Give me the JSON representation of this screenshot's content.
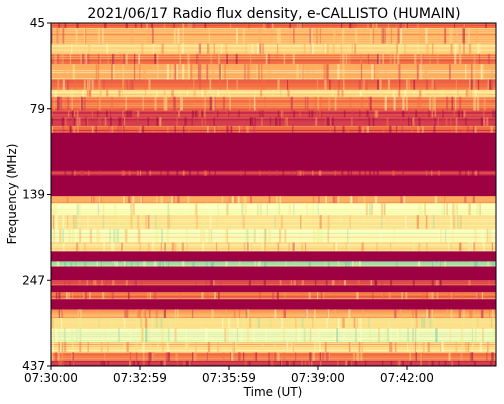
{
  "chart_data": {
    "type": "heatmap",
    "title": "2021/06/17  Radio flux density, e-CALLISTO (HUMAIN)",
    "xlabel": "Time (UT)",
    "ylabel": "Frequency (MHz)",
    "x_ticks": [
      "07:30:00",
      "07:32:59",
      "07:35:59",
      "07:39:00",
      "07:42:00"
    ],
    "y_ticks": [
      "45",
      "79",
      "139",
      "247",
      "437"
    ],
    "colormap": [
      "#9e0142",
      "#d53e4f",
      "#f46d43",
      "#fdae61",
      "#fee08b",
      "#ffffbf",
      "#e6f598",
      "#abdda4",
      "#66c2a5"
    ],
    "bands": [
      {
        "from": 0.0,
        "to": 0.015,
        "level": 0.2
      },
      {
        "from": 0.015,
        "to": 0.06,
        "level": 0.35
      },
      {
        "from": 0.06,
        "to": 0.09,
        "level": 0.45
      },
      {
        "from": 0.09,
        "to": 0.12,
        "level": 0.28
      },
      {
        "from": 0.12,
        "to": 0.165,
        "level": 0.4
      },
      {
        "from": 0.165,
        "to": 0.195,
        "level": 0.3
      },
      {
        "from": 0.195,
        "to": 0.215,
        "level": 0.52
      },
      {
        "from": 0.215,
        "to": 0.255,
        "level": 0.3
      },
      {
        "from": 0.255,
        "to": 0.275,
        "level": 0.15
      },
      {
        "from": 0.275,
        "to": 0.3,
        "level": 0.12
      },
      {
        "from": 0.3,
        "to": 0.32,
        "level": 0.2
      },
      {
        "from": 0.32,
        "to": 0.43,
        "level": 0.0
      },
      {
        "from": 0.43,
        "to": 0.445,
        "level": 0.1
      },
      {
        "from": 0.445,
        "to": 0.505,
        "level": 0.0
      },
      {
        "from": 0.505,
        "to": 0.525,
        "level": 0.4
      },
      {
        "from": 0.525,
        "to": 0.56,
        "level": 0.62
      },
      {
        "from": 0.56,
        "to": 0.6,
        "level": 0.55
      },
      {
        "from": 0.6,
        "to": 0.64,
        "level": 0.62
      },
      {
        "from": 0.64,
        "to": 0.665,
        "level": 0.45
      },
      {
        "from": 0.665,
        "to": 0.695,
        "level": 0.0
      },
      {
        "from": 0.695,
        "to": 0.71,
        "level": 0.85
      },
      {
        "from": 0.71,
        "to": 0.75,
        "level": 0.0
      },
      {
        "from": 0.75,
        "to": 0.765,
        "level": 0.18
      },
      {
        "from": 0.765,
        "to": 0.785,
        "level": 0.0
      },
      {
        "from": 0.785,
        "to": 0.805,
        "level": 0.3
      },
      {
        "from": 0.805,
        "to": 0.835,
        "level": 0.0
      },
      {
        "from": 0.835,
        "to": 0.86,
        "level": 0.35
      },
      {
        "from": 0.86,
        "to": 0.89,
        "level": 0.55
      },
      {
        "from": 0.89,
        "to": 0.93,
        "level": 0.68
      },
      {
        "from": 0.93,
        "to": 0.96,
        "level": 0.5
      },
      {
        "from": 0.96,
        "to": 0.985,
        "level": 0.25
      },
      {
        "from": 0.985,
        "to": 1.0,
        "level": 0.1
      }
    ]
  }
}
